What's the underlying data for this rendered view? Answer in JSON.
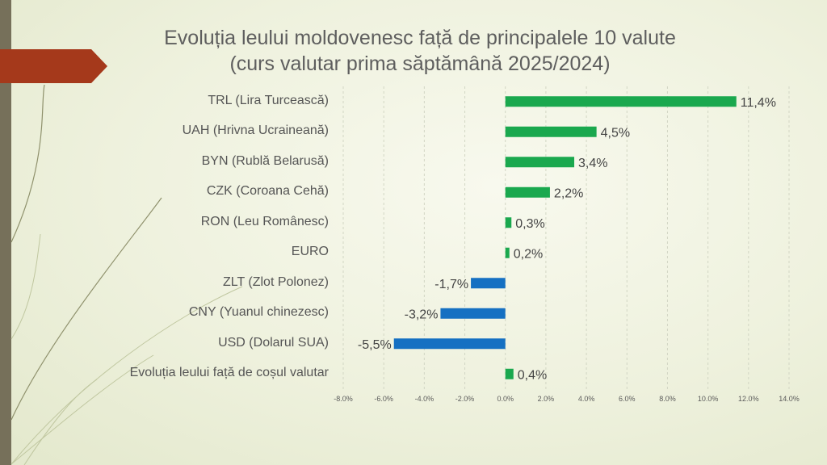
{
  "chart_data": {
    "type": "bar",
    "orientation": "horizontal",
    "title": "Evoluția leului moldovenesc față de principalele 10 valute",
    "subtitle": "(curs valutar prima săptămână 2025/2024)",
    "categories": [
      "TRL (Lira Turcească)",
      "UAH (Hrivna Ucraineană)",
      "BYN (Rublă Belarusă)",
      "CZK (Coroana Cehă)",
      "RON (Leu Românesc)",
      "EURO",
      "ZLT (Zlot Polonez)",
      "CNY (Yuanul chinezesc)",
      "USD (Dolarul SUA)",
      "Evoluția leului față de coșul valutar"
    ],
    "values": [
      11.4,
      4.5,
      3.4,
      2.2,
      0.3,
      0.2,
      -1.7,
      -3.2,
      -5.5,
      0.4
    ],
    "data_labels": [
      "11,4%",
      "4,5%",
      "3,4%",
      "2,2%",
      "0,3%",
      "0,2%",
      "-1,7%",
      "-3,2%",
      "-5,5%",
      "0,4%"
    ],
    "xlim": [
      -8,
      14
    ],
    "x_ticks": [
      "-8.0%",
      "-6.0%",
      "-4.0%",
      "-2.0%",
      "0.0%",
      "2.0%",
      "4.0%",
      "6.0%",
      "8.0%",
      "10.0%",
      "12.0%",
      "14.0%"
    ],
    "grid": true,
    "colors": {
      "positive": "#1aa84e",
      "negative": "#1570c2",
      "grid": "#d2d6c4",
      "label": "#444444"
    }
  }
}
